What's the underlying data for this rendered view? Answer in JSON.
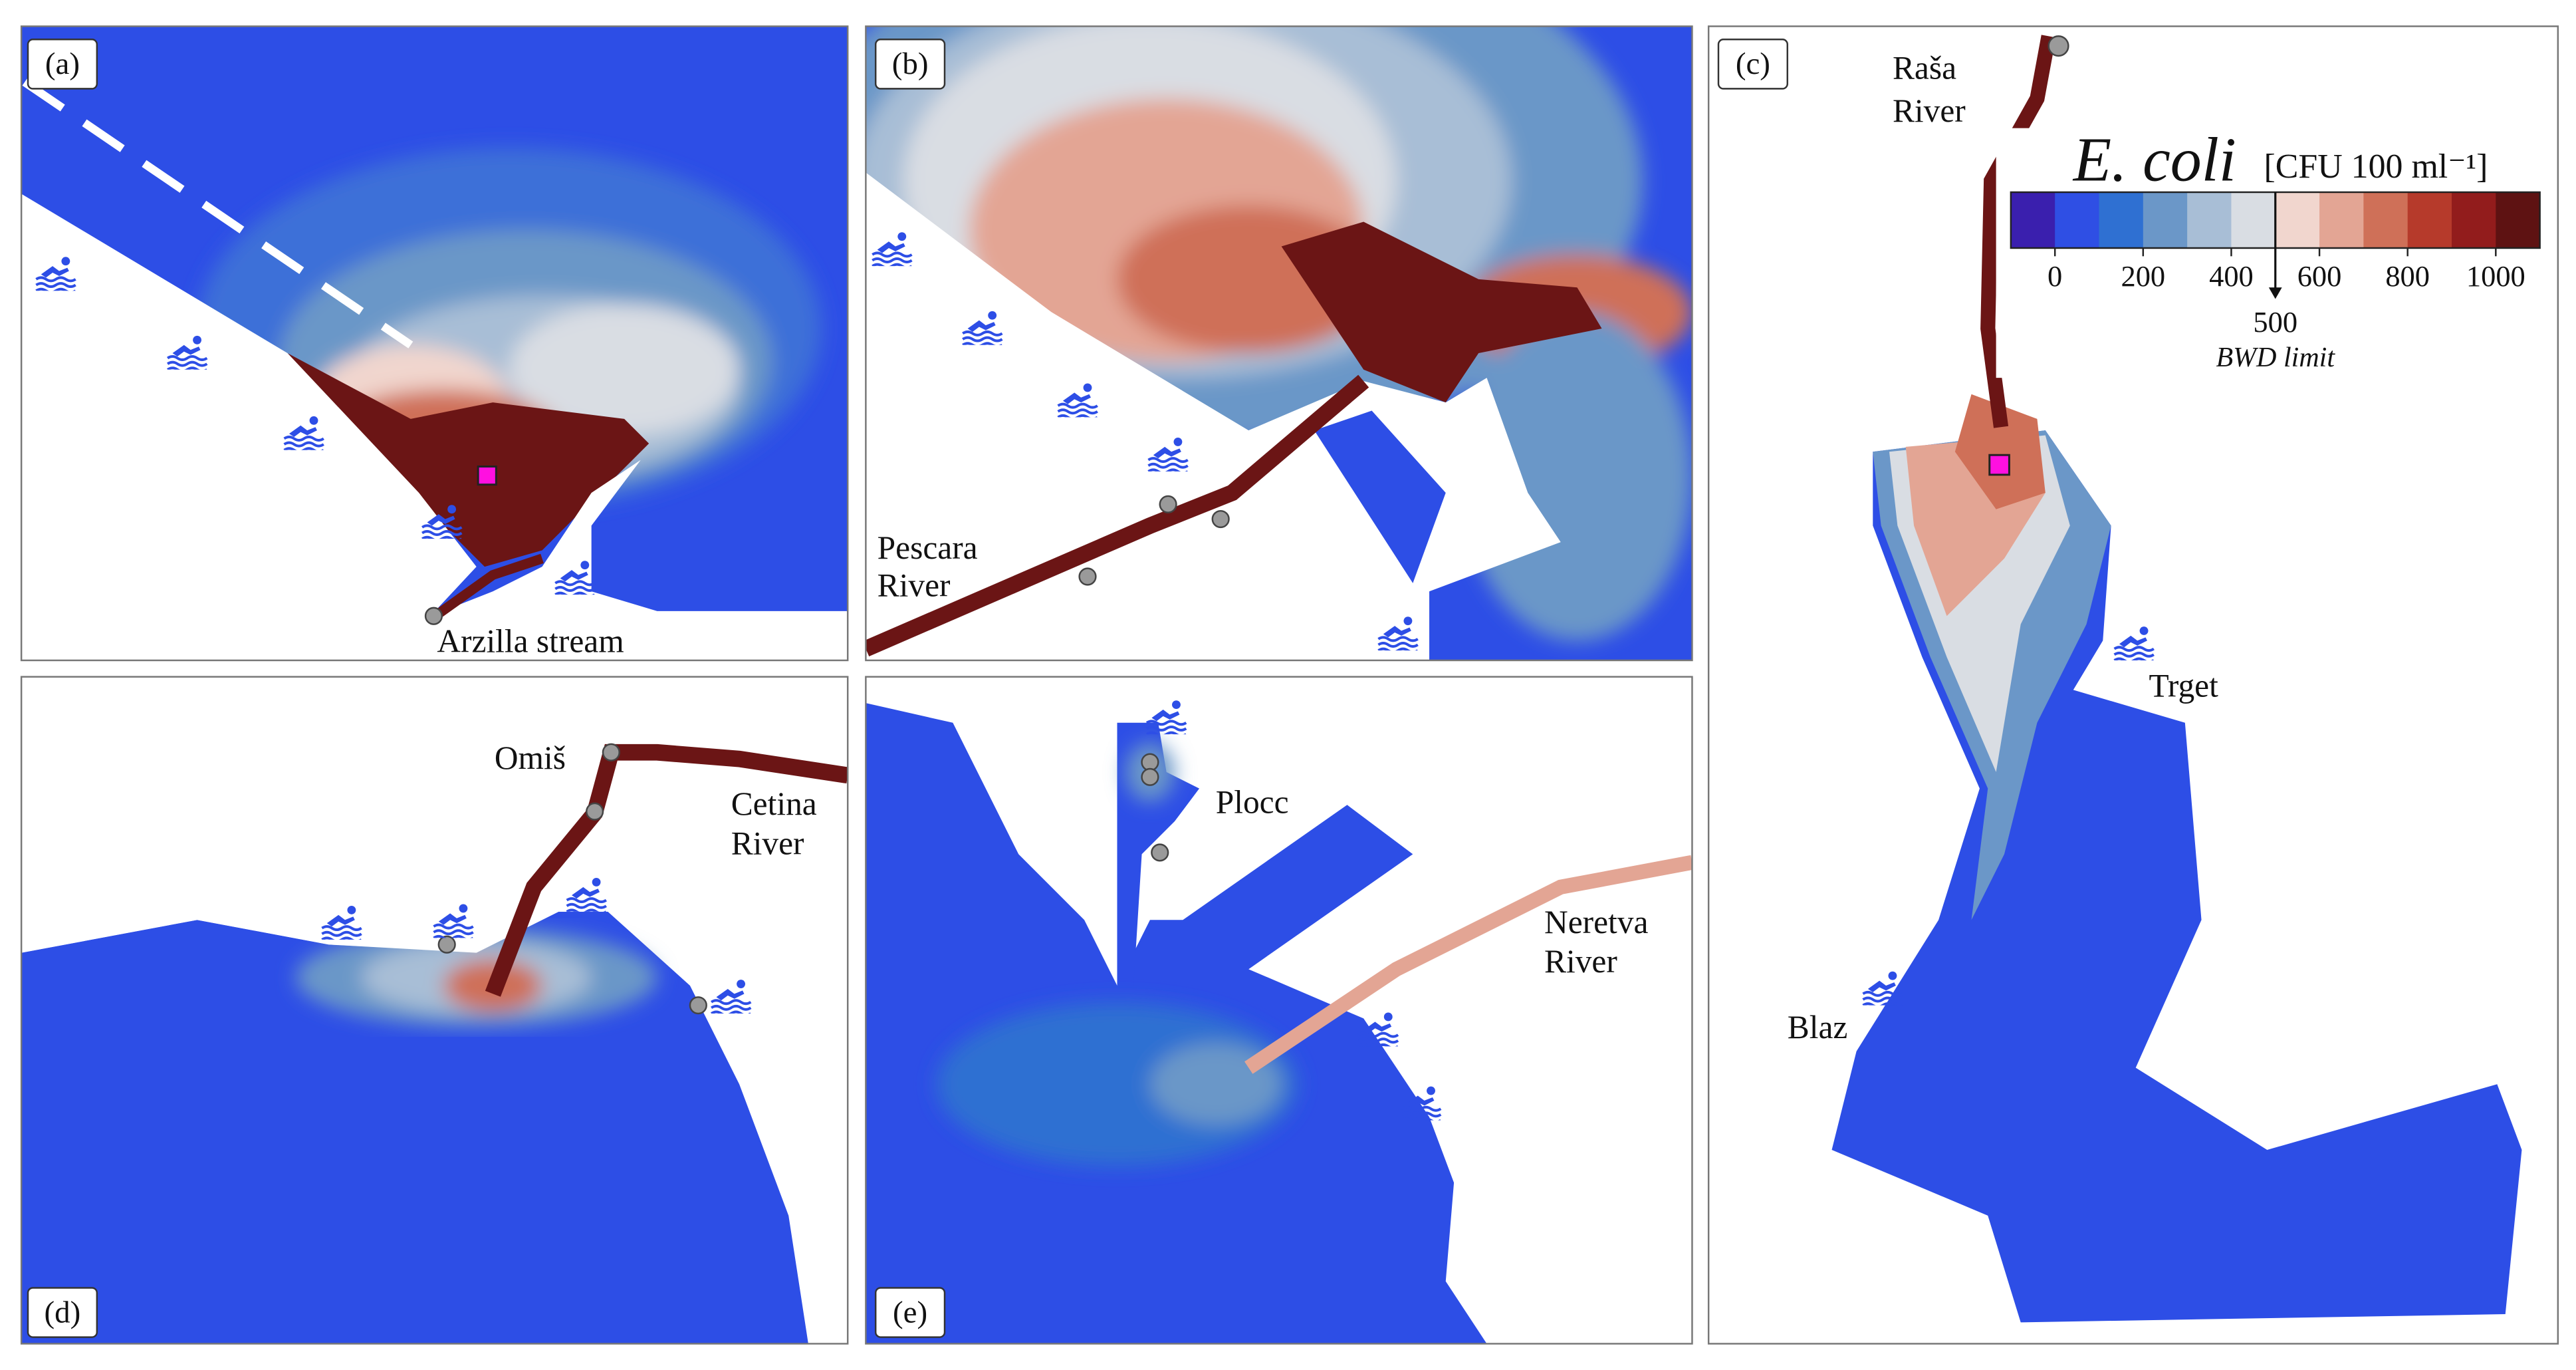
{
  "panels": [
    {
      "label": "(a)",
      "places": [
        [
          "Arzilla stream"
        ]
      ]
    },
    {
      "label": "(b)",
      "places": [
        [
          "Pescara",
          "River"
        ]
      ]
    },
    {
      "label": "(c)",
      "places": [
        [
          "Raša",
          "River"
        ],
        [
          "Trget"
        ],
        [
          "Blaz"
        ]
      ]
    },
    {
      "label": "(d)",
      "places": [
        [
          "Omiš"
        ],
        [
          "Cetina",
          "River"
        ]
      ]
    },
    {
      "label": "(e)",
      "places": [
        [
          "Plocc"
        ],
        [
          "Neretva",
          "River"
        ]
      ]
    }
  ],
  "colorbar": {
    "title": "E. coli",
    "unit": "[CFU 100 ml⁻¹]",
    "lim": [
      -100,
      1100
    ],
    "ticks": [
      0,
      200,
      400,
      600,
      800,
      1000
    ],
    "colors": [
      "#3a1fae",
      "#2f4fe4",
      "#2f70d2",
      "#6b97c8",
      "#a8bed6",
      "#d9dde3",
      "#f1d6ce",
      "#e3a594",
      "#cf7058",
      "#b63a2b",
      "#921c1c",
      "#5e1212"
    ],
    "limit": {
      "value": 500,
      "label": "BWD limit"
    }
  }
}
